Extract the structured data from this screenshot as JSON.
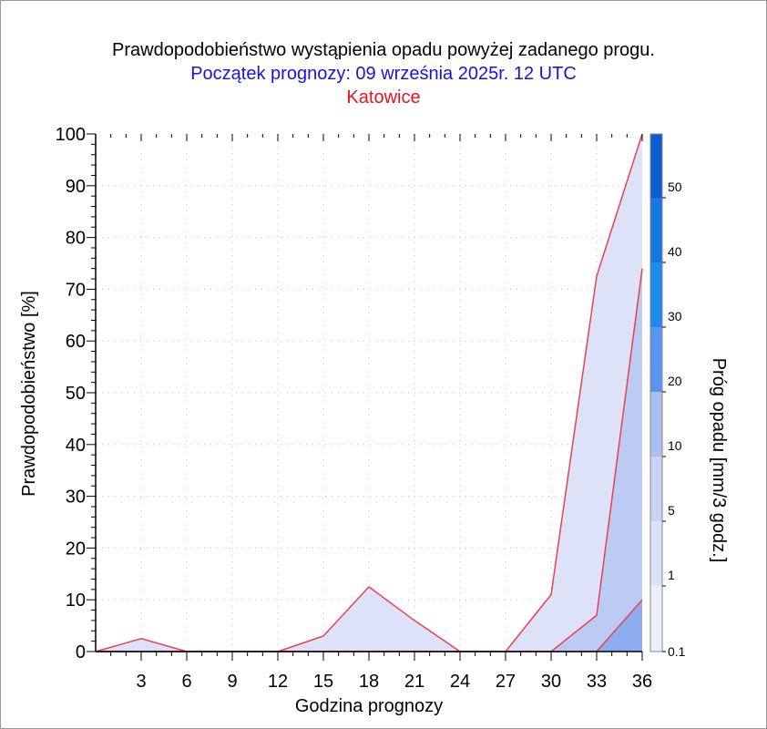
{
  "chart_data": {
    "type": "area",
    "title": "Prawdopodobieństwo wystąpienia opadu powyżej zadanego progu.",
    "subtitle": "Początek prognozy: 09 września 2025r. 12 UTC",
    "location": "Katowice",
    "xlabel": "Godzina prognozy",
    "ylabel": "Prawdopodobieństwo [%]",
    "colorbar_label": "Próg opadu [mm/3 godz.]",
    "xlim": [
      0,
      36
    ],
    "ylim": [
      0,
      100
    ],
    "x_ticks": [
      3,
      6,
      9,
      12,
      15,
      18,
      21,
      24,
      27,
      30,
      33,
      36
    ],
    "y_ticks": [
      0,
      10,
      20,
      30,
      40,
      50,
      60,
      70,
      80,
      90,
      100
    ],
    "grid": true,
    "x": [
      0,
      3,
      6,
      9,
      12,
      15,
      18,
      21,
      24,
      27,
      30,
      33,
      36
    ],
    "series": [
      {
        "name": "0.1",
        "color": "#dde2f8",
        "values": [
          0,
          2.5,
          0,
          0,
          0,
          3,
          12.5,
          6,
          0,
          0,
          11,
          72.5,
          100
        ]
      },
      {
        "name": "1",
        "color": "#bccbf4",
        "values": [
          0,
          0,
          0,
          0,
          0,
          0,
          0,
          0,
          0,
          0,
          0,
          7,
          74
        ]
      },
      {
        "name": "5",
        "color": "#8caef0",
        "values": [
          0,
          0,
          0,
          0,
          0,
          0,
          0,
          0,
          0,
          0,
          0,
          0,
          10
        ]
      }
    ],
    "colorbar": {
      "labels": [
        "0.1",
        "1",
        "5",
        "10",
        "20",
        "30",
        "40",
        "50"
      ],
      "colors": [
        "#edf0fb",
        "#dde2f8",
        "#c8d3f6",
        "#a9c0f3",
        "#5b94ee",
        "#1e8bec",
        "#1577e0",
        "#0d5bd0",
        "#0646b8"
      ]
    }
  }
}
